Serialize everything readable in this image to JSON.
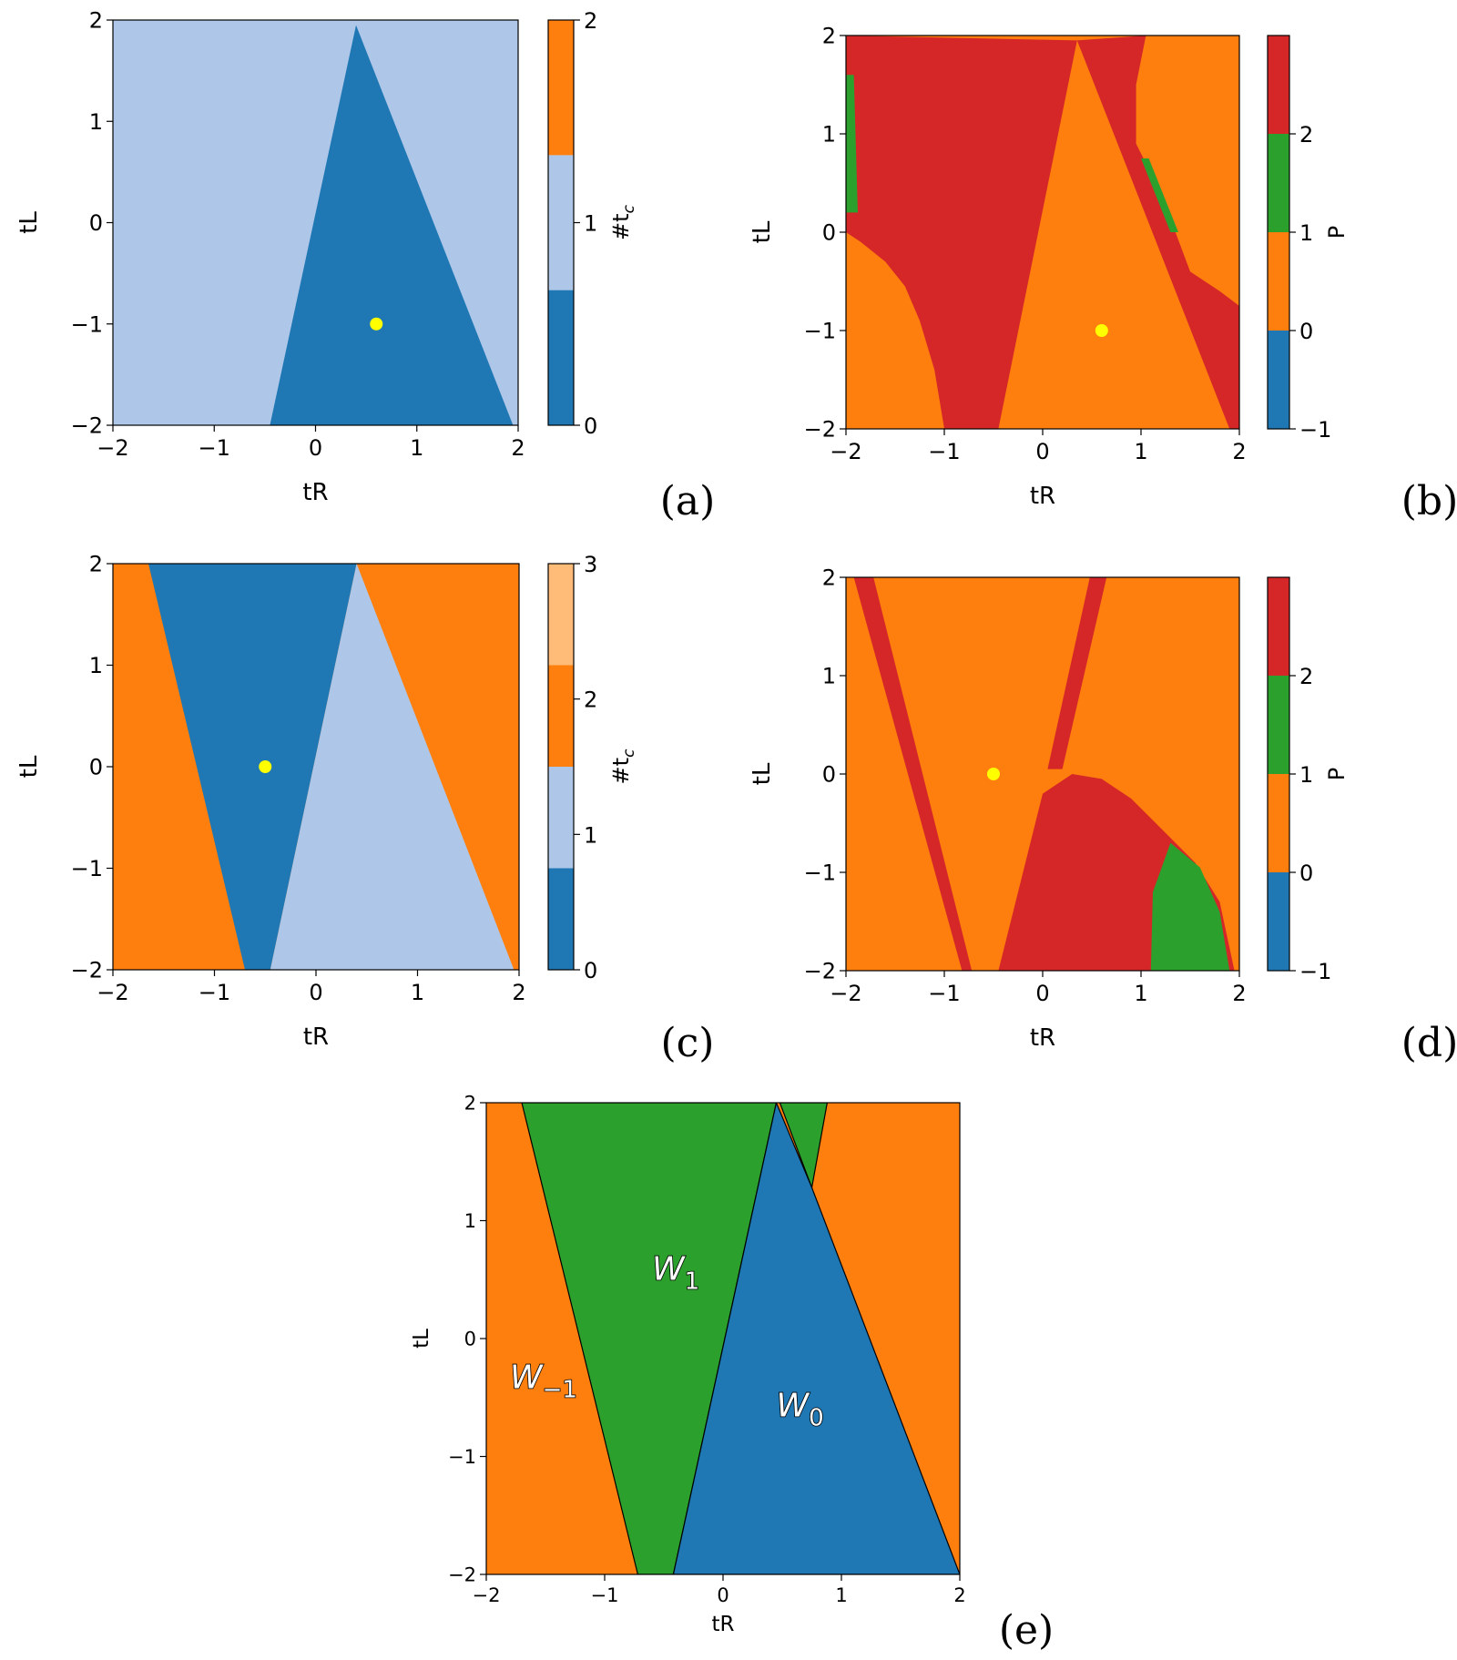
{
  "chart_data": [
    {
      "panel": "(a)",
      "type": "heatmap",
      "xlabel": "tR",
      "ylabel": "tL",
      "xlim": [
        -2,
        2
      ],
      "ylim": [
        -2,
        2
      ],
      "xticks": [
        -2,
        -1,
        0,
        1,
        2
      ],
      "yticks": [
        -2,
        -1,
        0,
        1,
        2
      ],
      "colorbar": {
        "label": "#t_c",
        "label_text": "#t",
        "label_sub": "c",
        "range": [
          0,
          2
        ],
        "ticks": [
          0,
          1,
          2
        ],
        "bands": [
          {
            "from": 0,
            "to": 0.667,
            "color": "#1f77b4"
          },
          {
            "from": 0.667,
            "to": 1.333,
            "color": "#aec7e8"
          },
          {
            "from": 1.333,
            "to": 2,
            "color": "#ff7f0e"
          }
        ]
      },
      "regions": [
        {
          "value": 1,
          "color": "#aec7e8",
          "polygon": [
            [
              -2,
              -2
            ],
            [
              2,
              -2
            ],
            [
              2,
              2
            ],
            [
              -2,
              2
            ]
          ]
        },
        {
          "value": 0,
          "color": "#1f77b4",
          "polygon": [
            [
              -0.45,
              -2
            ],
            [
              1.95,
              -2
            ],
            [
              0.4,
              1.95
            ]
          ]
        }
      ],
      "marker": {
        "x": 0.6,
        "y": -1,
        "color": "#ffff00"
      }
    },
    {
      "panel": "(b)",
      "type": "heatmap",
      "xlabel": "tR",
      "ylabel": "tL",
      "xlim": [
        -2,
        2
      ],
      "ylim": [
        -2,
        2
      ],
      "xticks": [
        -2,
        -1,
        0,
        1,
        2
      ],
      "yticks": [
        -2,
        -1,
        0,
        1,
        2
      ],
      "colorbar": {
        "label": "P",
        "label_text": "P",
        "label_sub": "",
        "range": [
          -1,
          3
        ],
        "ticks": [
          -1,
          0,
          1,
          2
        ],
        "bands": [
          {
            "from": -1,
            "to": 0,
            "color": "#1f77b4"
          },
          {
            "from": 0,
            "to": 1,
            "color": "#ff7f0e"
          },
          {
            "from": 1,
            "to": 2,
            "color": "#2ca02c"
          },
          {
            "from": 2,
            "to": 3,
            "color": "#d62728"
          }
        ]
      },
      "regions": [
        {
          "value": 0,
          "color": "#ff7f0e",
          "polygon": [
            [
              -2,
              -2
            ],
            [
              2,
              -2
            ],
            [
              2,
              2
            ],
            [
              -2,
              2
            ]
          ]
        },
        {
          "value": 2,
          "color": "#d62728",
          "polygon": [
            [
              -2,
              2
            ],
            [
              -2,
              0
            ],
            [
              -1.85,
              -0.1
            ],
            [
              -1.6,
              -0.3
            ],
            [
              -1.4,
              -0.55
            ],
            [
              -1.25,
              -0.9
            ],
            [
              -1.1,
              -1.4
            ],
            [
              -1.0,
              -2
            ],
            [
              -0.45,
              -2
            ],
            [
              0.35,
              1.95
            ],
            [
              -2,
              2
            ]
          ]
        },
        {
          "value": 2,
          "color": "#d62728",
          "polygon": [
            [
              0.35,
              1.95
            ],
            [
              1.05,
              2
            ],
            [
              0.95,
              1.5
            ],
            [
              0.95,
              0.9
            ],
            [
              1.2,
              0.4
            ],
            [
              1.5,
              -0.4
            ],
            [
              1.8,
              -0.6
            ],
            [
              2,
              -0.75
            ],
            [
              2,
              -2
            ],
            [
              1.9,
              -2
            ]
          ]
        },
        {
          "value": 1,
          "color": "#2ca02c",
          "polygon": [
            [
              -2,
              1.6
            ],
            [
              -1.92,
              1.6
            ],
            [
              -1.88,
              0.2
            ],
            [
              -2,
              0.2
            ]
          ]
        },
        {
          "value": 1,
          "color": "#2ca02c",
          "polygon": [
            [
              1.0,
              0.75
            ],
            [
              1.08,
              0.75
            ],
            [
              1.38,
              0.0
            ],
            [
              1.3,
              0.0
            ]
          ]
        }
      ],
      "marker": {
        "x": 0.6,
        "y": -1,
        "color": "#ffff00"
      }
    },
    {
      "panel": "(c)",
      "type": "heatmap",
      "xlabel": "tR",
      "ylabel": "tL",
      "xlim": [
        -2,
        2
      ],
      "ylim": [
        -2,
        2
      ],
      "xticks": [
        -2,
        -1,
        0,
        1,
        2
      ],
      "yticks": [
        -2,
        -1,
        0,
        1,
        2
      ],
      "colorbar": {
        "label": "#t_c",
        "label_text": "#t",
        "label_sub": "c",
        "range": [
          0,
          3
        ],
        "ticks": [
          0,
          1,
          2,
          3
        ],
        "bands": [
          {
            "from": 0,
            "to": 0.75,
            "color": "#1f77b4"
          },
          {
            "from": 0.75,
            "to": 1.5,
            "color": "#aec7e8"
          },
          {
            "from": 1.5,
            "to": 2.25,
            "color": "#ff7f0e"
          },
          {
            "from": 2.25,
            "to": 3,
            "color": "#ffbb78"
          }
        ]
      },
      "regions": [
        {
          "value": 2,
          "color": "#ff7f0e",
          "polygon": [
            [
              -2,
              -2
            ],
            [
              2,
              -2
            ],
            [
              2,
              2
            ],
            [
              -2,
              2
            ]
          ]
        },
        {
          "value": 0,
          "color": "#1f77b4",
          "polygon": [
            [
              -1.65,
              2
            ],
            [
              0.4,
              2
            ],
            [
              -0.45,
              -2
            ],
            [
              -0.7,
              -2
            ]
          ]
        },
        {
          "value": 1,
          "color": "#aec7e8",
          "polygon": [
            [
              0.4,
              2
            ],
            [
              1.95,
              -2
            ],
            [
              -0.45,
              -2
            ]
          ]
        }
      ],
      "marker": {
        "x": -0.5,
        "y": 0,
        "color": "#ffff00"
      }
    },
    {
      "panel": "(d)",
      "type": "heatmap",
      "xlabel": "tR",
      "ylabel": "tL",
      "xlim": [
        -2,
        2
      ],
      "ylim": [
        -2,
        2
      ],
      "xticks": [
        -2,
        -1,
        0,
        1,
        2
      ],
      "yticks": [
        -2,
        -1,
        0,
        1,
        2
      ],
      "colorbar": {
        "label": "P",
        "label_text": "P",
        "label_sub": "",
        "range": [
          -1,
          3
        ],
        "ticks": [
          -1,
          0,
          1,
          2
        ],
        "bands": [
          {
            "from": -1,
            "to": 0,
            "color": "#1f77b4"
          },
          {
            "from": 0,
            "to": 1,
            "color": "#ff7f0e"
          },
          {
            "from": 1,
            "to": 2,
            "color": "#2ca02c"
          },
          {
            "from": 2,
            "to": 3,
            "color": "#d62728"
          }
        ]
      },
      "regions": [
        {
          "value": 0,
          "color": "#ff7f0e",
          "polygon": [
            [
              -2,
              -2
            ],
            [
              2,
              -2
            ],
            [
              2,
              2
            ],
            [
              -2,
              2
            ]
          ]
        },
        {
          "value": 2,
          "color": "#d62728",
          "polygon": [
            [
              -1.92,
              2
            ],
            [
              -1.72,
              2
            ],
            [
              -0.72,
              -2
            ],
            [
              -0.82,
              -2
            ]
          ]
        },
        {
          "value": 2,
          "color": "#d62728",
          "polygon": [
            [
              0.48,
              2
            ],
            [
              0.65,
              2
            ],
            [
              0.2,
              0.05
            ],
            [
              0.05,
              0.05
            ]
          ]
        },
        {
          "value": 2,
          "color": "#d62728",
          "polygon": [
            [
              -0.45,
              -2
            ],
            [
              0.0,
              -0.2
            ],
            [
              0.3,
              0.0
            ],
            [
              0.6,
              -0.05
            ],
            [
              0.9,
              -0.25
            ],
            [
              1.2,
              -0.55
            ],
            [
              1.55,
              -0.9
            ],
            [
              1.8,
              -1.3
            ],
            [
              1.95,
              -2
            ]
          ]
        },
        {
          "value": 1,
          "color": "#2ca02c",
          "polygon": [
            [
              1.1,
              -2
            ],
            [
              1.12,
              -1.2
            ],
            [
              1.3,
              -0.7
            ],
            [
              1.6,
              -0.95
            ],
            [
              1.8,
              -1.4
            ],
            [
              1.9,
              -2
            ]
          ]
        }
      ],
      "marker": {
        "x": -0.5,
        "y": 0,
        "color": "#ffff00"
      }
    },
    {
      "panel": "(e)",
      "type": "heatmap",
      "xlabel": "tR",
      "ylabel": "tL",
      "xlim": [
        -2,
        2
      ],
      "ylim": [
        -2,
        2
      ],
      "xticks": [
        -2,
        -1,
        0,
        1,
        2
      ],
      "yticks": [
        -2,
        -1,
        0,
        1,
        2
      ],
      "regions": [
        {
          "value": "W-1",
          "color": "#ff7f0e",
          "polygon": [
            [
              -2,
              -2
            ],
            [
              2,
              -2
            ],
            [
              2,
              2
            ],
            [
              -2,
              2
            ]
          ]
        },
        {
          "value": "W1",
          "color": "#2ca02c",
          "polygon": [
            [
              -1.7,
              2
            ],
            [
              0.45,
              2
            ],
            [
              -0.42,
              -2
            ],
            [
              -0.72,
              -2
            ]
          ]
        },
        {
          "value": "W1",
          "color": "#2ca02c",
          "polygon": [
            [
              0.48,
              2
            ],
            [
              0.88,
              2
            ],
            [
              0.75,
              1.28
            ]
          ]
        },
        {
          "value": "W0",
          "color": "#1f77b4",
          "polygon": [
            [
              0.45,
              2
            ],
            [
              0.75,
              1.28
            ],
            [
              2,
              -2
            ],
            [
              -0.42,
              -2
            ]
          ]
        }
      ],
      "annotations": [
        {
          "text": "W",
          "sub": "1",
          "x": -0.6,
          "y": 0.5
        },
        {
          "text": "W",
          "sub": "−1",
          "x": -1.8,
          "y": -0.42
        },
        {
          "text": "W",
          "sub": "0",
          "x": 0.45,
          "y": -0.66
        }
      ]
    }
  ]
}
